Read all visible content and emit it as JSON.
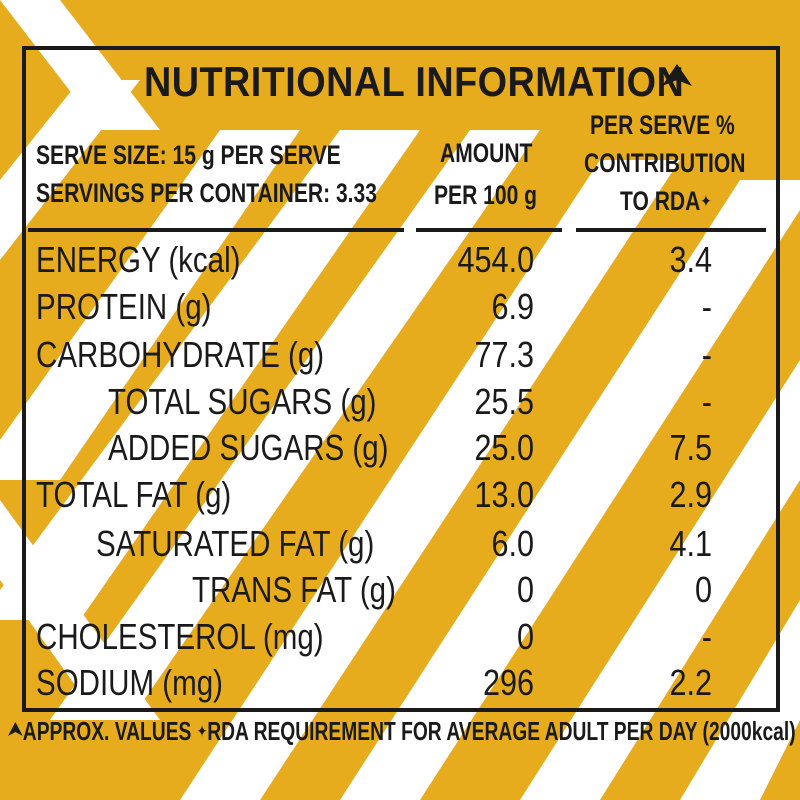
{
  "panel": {
    "title": "NUTRITIONAL INFORMATION",
    "colors": {
      "background": "#e6ac1e",
      "stripe": "#ffffff",
      "ink": "#1a1a1a"
    },
    "title_mark_icon": "triangle-up-mark-icon"
  },
  "header": {
    "serve_size": "SERVE SIZE: 15 g PER SERVE",
    "servings": "SERVINGS PER CONTAINER: 3.33",
    "amount_line1": "AMOUNT",
    "amount_line2": "PER 100 g",
    "rda_line1": "PER SERVE %",
    "rda_line2": "CONTRIBUTION",
    "rda_line3": "TO RDA",
    "rda_mark_icon": "four-point-star-icon"
  },
  "rows": [
    {
      "name": "ENERGY (kcal)",
      "amount": "454.0",
      "rda": "3.4"
    },
    {
      "name": "PROTEIN (g)",
      "amount": "6.9",
      "rda": "-"
    },
    {
      "name": "CARBOHYDRATE (g)",
      "amount": "77.3",
      "rda": "-"
    },
    {
      "name": "TOTAL SUGARS (g)",
      "amount": "25.5",
      "rda": "-"
    },
    {
      "name": "ADDED SUGARS (g)",
      "amount": "25.0",
      "rda": "7.5"
    },
    {
      "name": "TOTAL FAT (g)",
      "amount": "13.0",
      "rda": "2.9"
    },
    {
      "name": "SATURATED FAT (g)",
      "amount": "6.0",
      "rda": "4.1"
    },
    {
      "name": "TRANS FAT (g)",
      "amount": "0",
      "rda": "0"
    },
    {
      "name": "CHOLESTEROL (mg)",
      "amount": "0",
      "rda": "-"
    },
    {
      "name": "SODIUM (mg)",
      "amount": "296",
      "rda": "2.2"
    }
  ],
  "footer": {
    "approx": "APPROX. VALUES",
    "rda_note": "RDA REQUIREMENT FOR AVERAGE ADULT PER DAY (2000kcal)"
  }
}
